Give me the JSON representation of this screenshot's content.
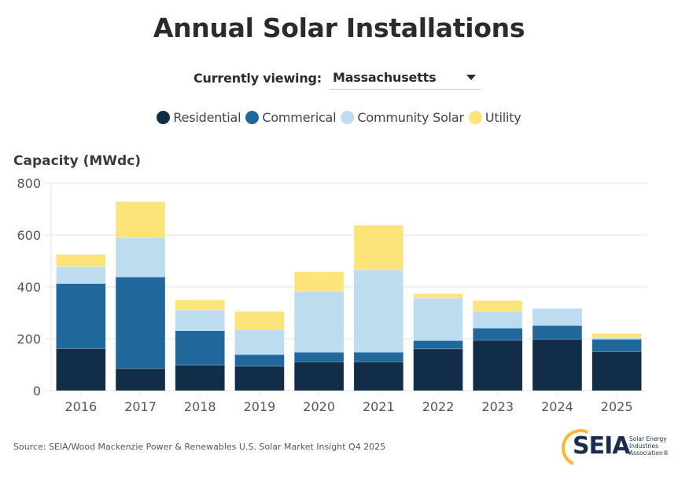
{
  "header": {
    "title": "Annual Solar Installations",
    "viewing_label": "Currently viewing:",
    "selected_state": "Massachusetts",
    "dropdown_icon": "caret-down-icon"
  },
  "legend": [
    {
      "label": "Residential",
      "color": "#112d47"
    },
    {
      "label": "Commerical",
      "color": "#20679b"
    },
    {
      "label": "Community Solar",
      "color": "#bedcf0"
    },
    {
      "label": "Utility",
      "color": "#fde47a"
    }
  ],
  "chart_data": {
    "type": "bar",
    "stacked": true,
    "title": "Annual Solar Installations",
    "xlabel": "",
    "ylabel": "Capacity (MWdc)",
    "ylim": [
      0,
      800
    ],
    "yticks": [
      0,
      200,
      400,
      600,
      800
    ],
    "grid": true,
    "legend_position": "top-center",
    "categories": [
      "2016",
      "2017",
      "2018",
      "2019",
      "2020",
      "2021",
      "2022",
      "2023",
      "2024",
      "2025"
    ],
    "series": [
      {
        "name": "Residential",
        "color": "#112d47",
        "values": [
          162,
          85,
          98,
          94,
          111,
          111,
          161,
          194,
          198,
          150
        ]
      },
      {
        "name": "Commerical",
        "color": "#20679b",
        "values": [
          251,
          353,
          133,
          45,
          37,
          37,
          32,
          47,
          53,
          48
        ]
      },
      {
        "name": "Community Solar",
        "color": "#bedcf0",
        "values": [
          65,
          152,
          80,
          96,
          234,
          318,
          164,
          64,
          66,
          7
        ]
      },
      {
        "name": "Utility",
        "color": "#fde47a",
        "values": [
          47,
          139,
          39,
          70,
          76,
          172,
          17,
          42,
          0,
          15
        ]
      }
    ]
  },
  "footer": {
    "source": "Source: SEIA/Wood Mackenzie Power & Renewables U.S. Solar Market Insight Q4 2025",
    "logo_text": "SEIA",
    "logo_subtext": "Solar Energy Industries Association®"
  }
}
